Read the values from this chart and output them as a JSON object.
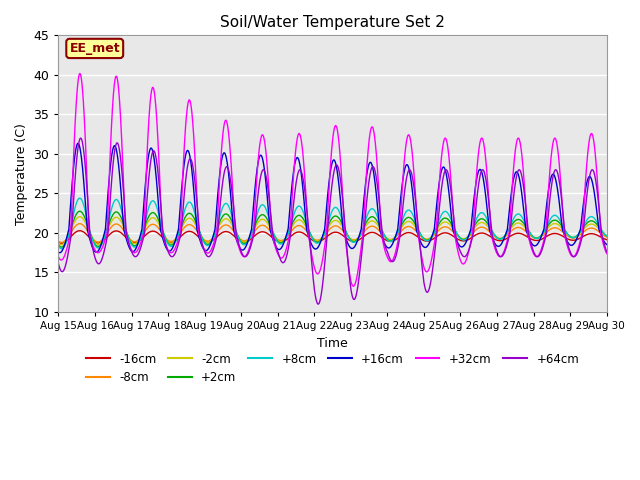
{
  "title": "Soil/Water Temperature Set 2",
  "xlabel": "Time",
  "ylabel": "Temperature (C)",
  "ylim": [
    10,
    45
  ],
  "xlim": [
    0,
    15
  ],
  "annotation_text": "EE_met",
  "annotation_bg": "#FFFF99",
  "annotation_border": "#8B0000",
  "xtick_labels": [
    "Aug 15",
    "Aug 16",
    "Aug 17",
    "Aug 18",
    "Aug 19",
    "Aug 20",
    "Aug 21",
    "Aug 22",
    "Aug 23",
    "Aug 24",
    "Aug 25",
    "Aug 26",
    "Aug 27",
    "Aug 28",
    "Aug 29",
    "Aug 30"
  ],
  "xtick_positions": [
    0,
    1,
    2,
    3,
    4,
    5,
    6,
    7,
    8,
    9,
    10,
    11,
    12,
    13,
    14,
    15
  ],
  "ytick_labels": [
    "10",
    "15",
    "20",
    "25",
    "30",
    "35",
    "40",
    "45"
  ],
  "ytick_positions": [
    10,
    15,
    20,
    25,
    30,
    35,
    40,
    45
  ],
  "series_labels": [
    "-16cm",
    "-8cm",
    "-2cm",
    "+2cm",
    "+8cm",
    "+16cm",
    "+32cm",
    "+64cm"
  ],
  "series_colors": [
    "#CC0000",
    "#FF8800",
    "#CCCC00",
    "#00AA00",
    "#00CCCC",
    "#0000CC",
    "#FF00FF",
    "#9900CC"
  ]
}
